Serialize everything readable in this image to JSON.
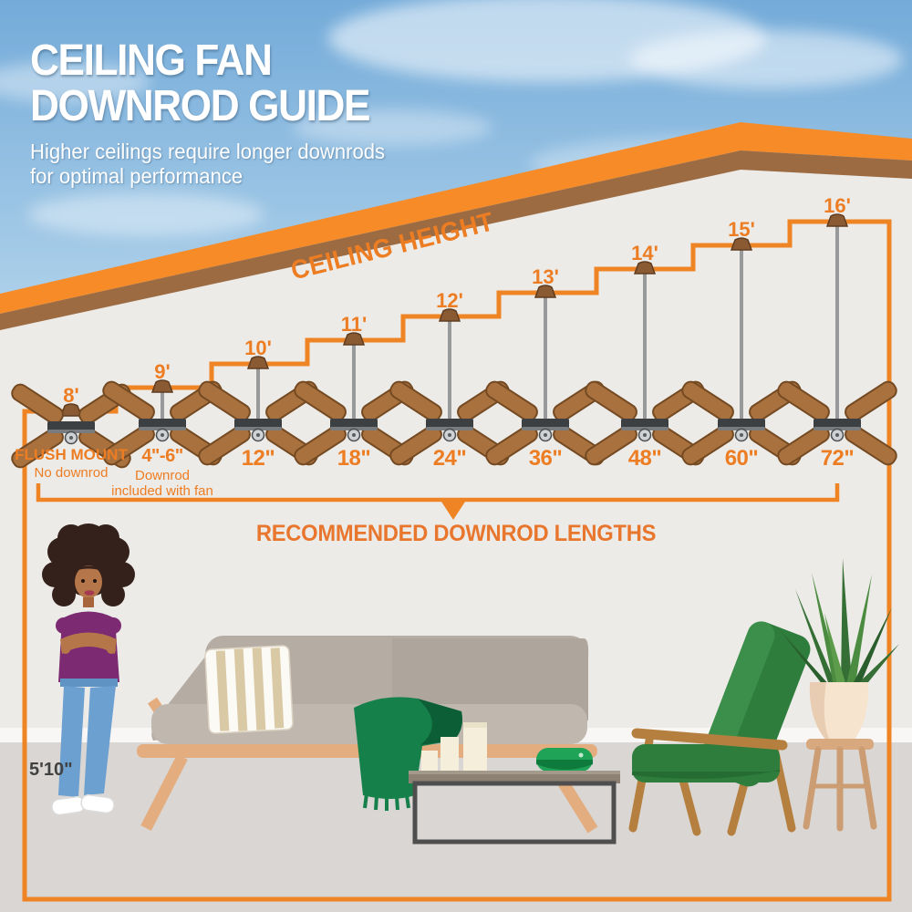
{
  "header": {
    "title_line1": "CEILING FAN",
    "title_line2": "DOWNROD GUIDE",
    "subtitle_line1": "Higher ceilings require longer downrods",
    "subtitle_line2": "for optimal performance"
  },
  "diagram": {
    "ceiling_height_label": "CEILING HEIGHT",
    "recommended_label": "RECOMMENDED DOWNROD LENGTHS",
    "person_height": "5'10\"",
    "entries": [
      {
        "ceiling": "8'",
        "downrod": "FLUSH MOUNT",
        "note": "No downrod"
      },
      {
        "ceiling": "9'",
        "downrod": "4\"-6\"",
        "note": "Downrod included with fan"
      },
      {
        "ceiling": "10'",
        "downrod": "12\""
      },
      {
        "ceiling": "11'",
        "downrod": "18\""
      },
      {
        "ceiling": "12'",
        "downrod": "24\""
      },
      {
        "ceiling": "13'",
        "downrod": "36\""
      },
      {
        "ceiling": "14'",
        "downrod": "48\""
      },
      {
        "ceiling": "15'",
        "downrod": "60\""
      },
      {
        "ceiling": "16'",
        "downrod": "72\""
      }
    ]
  },
  "colors": {
    "accent_orange": "#ee8424",
    "text_orange": "#ed7d23",
    "roof_brown": "#9c6b42",
    "wall": "#edebe8",
    "floor": "#d9d6d3",
    "throw_green": "#15804a",
    "chair_green": "#2e7d3d"
  }
}
